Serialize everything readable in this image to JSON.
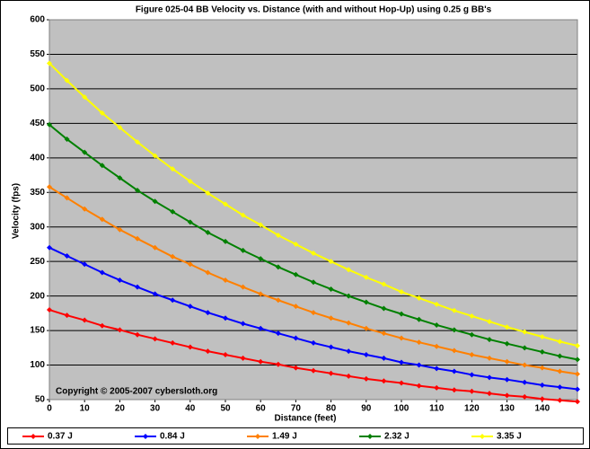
{
  "chart_data": {
    "type": "line",
    "title": "Figure 025-04  BB Velocity vs. Distance (with and without Hop-Up) using 0.25 g BB's",
    "x_label": "Distance (feet)",
    "y_label": "Velocity (fps)",
    "annotation": "Copyright © 2005-2007 cybersloth.org",
    "x": [
      0,
      5,
      10,
      15,
      20,
      25,
      30,
      35,
      40,
      45,
      50,
      55,
      60,
      65,
      70,
      75,
      80,
      85,
      90,
      95,
      100,
      105,
      110,
      115,
      120,
      125,
      130,
      135,
      140,
      145,
      150
    ],
    "xlim": [
      0,
      150
    ],
    "xticks": [
      0,
      10,
      20,
      30,
      40,
      50,
      60,
      70,
      80,
      90,
      100,
      110,
      120,
      130,
      140
    ],
    "ylim": [
      50,
      600
    ],
    "yticks": [
      50,
      100,
      150,
      200,
      250,
      300,
      350,
      400,
      450,
      500,
      550,
      600
    ],
    "grid": true,
    "legend": "bottom",
    "series": [
      {
        "name": "0.37 J",
        "color": "#ff0000",
        "values": [
          180,
          172,
          165,
          157,
          151,
          144,
          138,
          132,
          126,
          120,
          115,
          110,
          105,
          101,
          96,
          92,
          88,
          84,
          80,
          77,
          74,
          70,
          67,
          64,
          62,
          59,
          56,
          54,
          51,
          49,
          47
        ]
      },
      {
        "name": "0.84 J",
        "color": "#0000ff",
        "values": [
          270,
          258,
          246,
          234,
          223,
          213,
          203,
          194,
          185,
          176,
          168,
          160,
          153,
          146,
          139,
          132,
          126,
          120,
          115,
          110,
          104,
          100,
          95,
          91,
          86,
          82,
          79,
          75,
          71,
          68,
          65
        ]
      },
      {
        "name": "1.49 J",
        "color": "#ff8000",
        "values": [
          358,
          342,
          326,
          311,
          296,
          283,
          270,
          257,
          246,
          234,
          223,
          213,
          203,
          194,
          185,
          176,
          168,
          161,
          153,
          146,
          139,
          133,
          127,
          121,
          115,
          110,
          105,
          100,
          96,
          91,
          87
        ]
      },
      {
        "name": "2.32 J",
        "color": "#008000",
        "values": [
          448,
          427,
          408,
          389,
          371,
          353,
          337,
          322,
          307,
          292,
          279,
          266,
          254,
          242,
          231,
          220,
          210,
          200,
          191,
          182,
          174,
          166,
          158,
          151,
          144,
          137,
          131,
          125,
          119,
          113,
          108
        ]
      },
      {
        "name": "3.35 J",
        "color": "#ffff00",
        "values": [
          537,
          512,
          488,
          465,
          444,
          423,
          403,
          384,
          366,
          349,
          333,
          317,
          303,
          288,
          275,
          262,
          250,
          238,
          227,
          217,
          206,
          197,
          188,
          179,
          171,
          163,
          155,
          148,
          141,
          134,
          128
        ]
      }
    ]
  }
}
